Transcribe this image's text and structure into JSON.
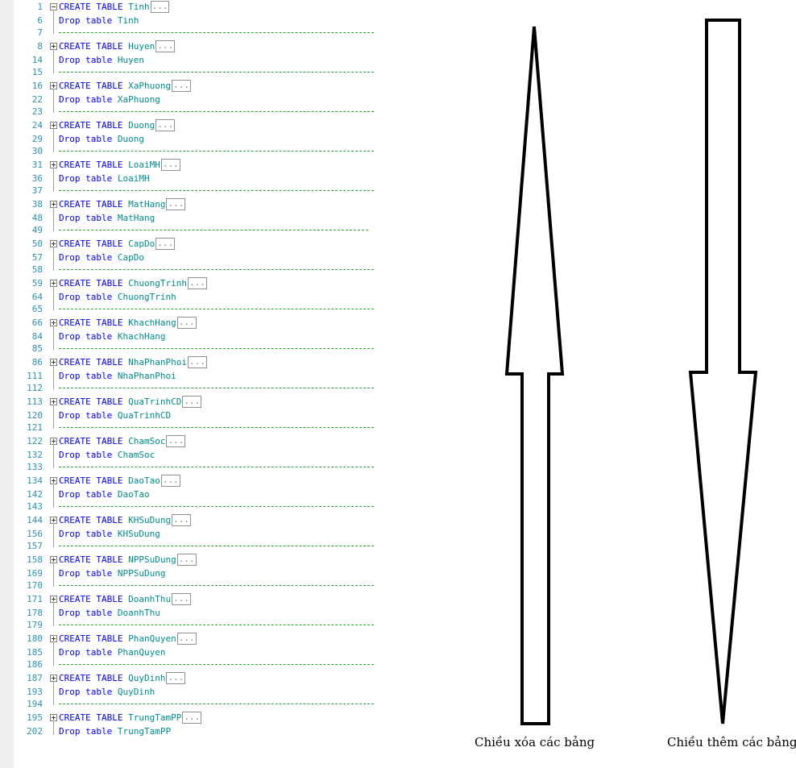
{
  "editor": {
    "blocks": [
      {
        "n1": "1",
        "n2": "6",
        "n3": "7",
        "name": "Tinh",
        "open": true
      },
      {
        "n1": "8",
        "n2": "14",
        "n3": "15",
        "name": "Huyen"
      },
      {
        "n1": "16",
        "n2": "22",
        "n3": "23",
        "name": "XaPhuong"
      },
      {
        "n1": "24",
        "n2": "29",
        "n3": "30",
        "name": "Duong"
      },
      {
        "n1": "31",
        "n2": "36",
        "n3": "37",
        "name": "LoaiMH"
      },
      {
        "n1": "38",
        "n2": "48",
        "n3": "49",
        "name": "MatHang"
      },
      {
        "n1": "50",
        "n2": "57",
        "n3": "58",
        "name": "CapDo"
      },
      {
        "n1": "59",
        "n2": "64",
        "n3": "65",
        "name": "ChuongTrinh"
      },
      {
        "n1": "66",
        "n2": "84",
        "n3": "85",
        "name": "KhachHang"
      },
      {
        "n1": "86",
        "n2": "111",
        "n3": "112",
        "name": "NhaPhanPhoi"
      },
      {
        "n1": "113",
        "n2": "120",
        "n3": "121",
        "name": "QuaTrinhCD"
      },
      {
        "n1": "122",
        "n2": "132",
        "n3": "133",
        "name": "ChamSoc"
      },
      {
        "n1": "134",
        "n2": "142",
        "n3": "143",
        "name": "DaoTao"
      },
      {
        "n1": "144",
        "n2": "156",
        "n3": "157",
        "name": "KHSuDung"
      },
      {
        "n1": "158",
        "n2": "169",
        "n3": "170",
        "name": "NPPSuDung"
      },
      {
        "n1": "171",
        "n2": "178",
        "n3": "179",
        "name": "DoanhThu"
      },
      {
        "n1": "180",
        "n2": "185",
        "n3": "186",
        "name": "PhanQuyen"
      },
      {
        "n1": "187",
        "n2": "193",
        "n3": "194",
        "name": "QuyDinh"
      },
      {
        "n1": "195",
        "n2": "202",
        "n3": null,
        "name": "TrungTamPP"
      }
    ],
    "create_kw": "CREATE TABLE",
    "drop_kw": "Drop table",
    "collapsed_marker": "...",
    "separator": "-----------------------------------------------------------------",
    "colors": {
      "line_number": "#2b91af",
      "keyword": "#0000ff",
      "identifier": "#008b8b",
      "comment": "#2e9e2e"
    }
  },
  "captions": {
    "up_arrow": "Chiều xóa các bảng",
    "down_arrow": "Chiều thêm các bảng"
  },
  "icons": {
    "up_arrow": "arrow-up-icon",
    "down_arrow": "arrow-down-icon"
  }
}
